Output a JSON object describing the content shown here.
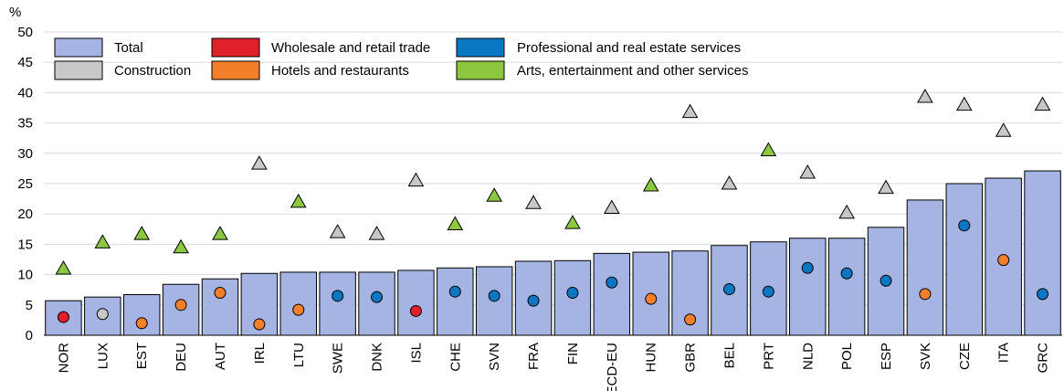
{
  "chart_data": {
    "type": "bar",
    "y_unit": "%",
    "categories": [
      "NOR",
      "LUX",
      "EST",
      "DEU",
      "AUT",
      "IRL",
      "LTU",
      "SWE",
      "DNK",
      "ISL",
      "CHE",
      "SVN",
      "FRA",
      "FIN",
      "OECD-EU",
      "HUN",
      "GBR",
      "BEL",
      "PRT",
      "NLD",
      "POL",
      "ESP",
      "SVK",
      "CZE",
      "ITA",
      "GRC"
    ],
    "series": [
      {
        "name": "Total",
        "color": "#a5b4e3",
        "values": [
          5.7,
          6.3,
          6.7,
          8.4,
          9.3,
          10.2,
          10.4,
          10.4,
          10.4,
          10.7,
          11.1,
          11.3,
          12.2,
          12.3,
          13.5,
          13.7,
          13.9,
          14.8,
          15.4,
          16.0,
          16.0,
          17.8,
          22.3,
          25.0,
          25.9,
          27.1
        ]
      },
      {
        "name": "Construction",
        "color": "#c8c8c8",
        "values": [
          null,
          3.5,
          null,
          null,
          null,
          28.3,
          null,
          17,
          16.7,
          25.5,
          null,
          null,
          21.8,
          null,
          21,
          null,
          36.8,
          25,
          null,
          26.8,
          20.2,
          24.3,
          39.3,
          38,
          33.7,
          38
        ]
      },
      {
        "name": "Wholesale and retail trade",
        "color": "#e0202a",
        "values": [
          3.0,
          null,
          null,
          null,
          null,
          null,
          null,
          null,
          null,
          4.0,
          null,
          null,
          null,
          null,
          null,
          null,
          null,
          null,
          null,
          null,
          null,
          null,
          null,
          null,
          null,
          null
        ]
      },
      {
        "name": "Hotels and restaurants",
        "color": "#f47f2a",
        "values": [
          null,
          null,
          2.0,
          5.0,
          7.0,
          1.8,
          4.2,
          null,
          null,
          null,
          null,
          null,
          null,
          null,
          null,
          6.0,
          2.6,
          null,
          null,
          null,
          null,
          null,
          6.8,
          null,
          12.4,
          null
        ]
      },
      {
        "name": "Professional and real estate services",
        "color": "#0a77c2",
        "values": [
          null,
          null,
          null,
          null,
          null,
          null,
          null,
          6.5,
          6.3,
          null,
          7.2,
          6.5,
          5.7,
          7.0,
          8.7,
          null,
          null,
          7.6,
          7.2,
          11.1,
          10.2,
          9.0,
          null,
          18.1,
          null,
          6.8
        ]
      },
      {
        "name": "Arts, entertainment and other services",
        "color": "#8dc63f",
        "values": [
          11,
          15.3,
          16.7,
          14.5,
          16.7,
          null,
          22,
          null,
          null,
          null,
          18.3,
          23,
          null,
          18.5,
          null,
          24.7,
          null,
          null,
          30.5,
          null,
          null,
          null,
          null,
          null,
          null,
          null
        ]
      }
    ],
    "ylim": [
      0,
      50
    ],
    "yticks": [
      0,
      5,
      10,
      15,
      20,
      25,
      30,
      35,
      40,
      45,
      50
    ],
    "grid": true
  }
}
